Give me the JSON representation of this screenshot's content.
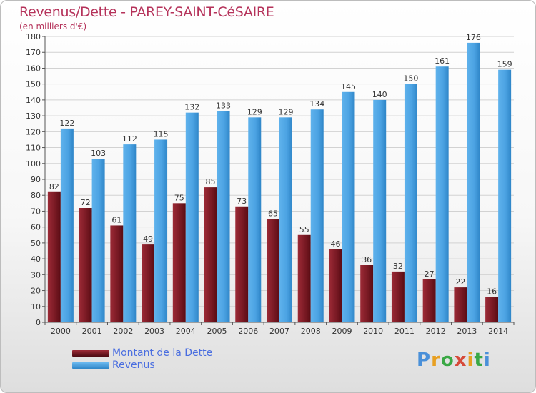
{
  "title": "Revenus/Dette - PAREY-SAINT-CéSAIRE",
  "subtitle": "(en milliers d'€)",
  "logo_text": "Proxiti",
  "colors": {
    "debt": "#8c1f2b",
    "revenue": "#4ca3e3",
    "title": "#b5325a",
    "legend_text": "#4a6ee0"
  },
  "chart_data": {
    "type": "bar",
    "title": "Revenus/Dette - PAREY-SAINT-CéSAIRE",
    "ylabel": "(en milliers d'€)",
    "xlabel": "",
    "ylim": [
      0,
      180
    ],
    "ytick_step": 10,
    "grid": true,
    "legend_position": "bottom-left",
    "categories": [
      "2000",
      "2001",
      "2002",
      "2003",
      "2004",
      "2005",
      "2006",
      "2007",
      "2008",
      "2009",
      "2010",
      "2011",
      "2012",
      "2013",
      "2014"
    ],
    "series": [
      {
        "name": "Montant de la Dette",
        "values": [
          82,
          72,
          61,
          49,
          75,
          85,
          73,
          65,
          55,
          46,
          36,
          32,
          27,
          22,
          16
        ]
      },
      {
        "name": "Revenus",
        "values": [
          122,
          103,
          112,
          115,
          132,
          133,
          129,
          129,
          134,
          145,
          140,
          150,
          161,
          176,
          159
        ]
      }
    ]
  }
}
